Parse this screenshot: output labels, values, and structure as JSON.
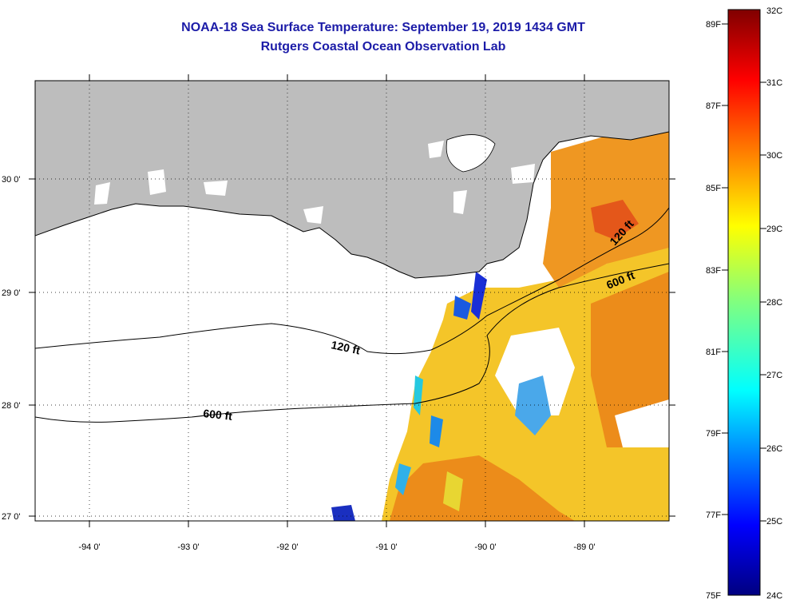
{
  "header": {
    "title": "NOAA-18 Sea Surface Temperature:  September 19, 2019 1434 GMT",
    "subtitle": "Rutgers Coastal Ocean Observation Lab"
  },
  "map": {
    "lon_labels": [
      "-94 0'",
      "-93 0'",
      "-92 0'",
      "-91 0'",
      "-90 0'",
      "-89 0'"
    ],
    "lat_labels": [
      "30 0'",
      "29 0'",
      "28 0'",
      "27 0'"
    ],
    "contour_labels": [
      "120 ft",
      "600 ft",
      "120 ft",
      "600 ft"
    ],
    "colors": {
      "land": "#bdbdbd",
      "ocean_nodata": "#ffffff"
    }
  },
  "colorbar": {
    "fahrenheit": [
      "89F",
      "87F",
      "85F",
      "83F",
      "81F",
      "79F",
      "77F",
      "75F"
    ],
    "celsius": [
      "32C",
      "31C",
      "30C",
      "29C",
      "28C",
      "27C",
      "26C",
      "25C",
      "24C"
    ]
  }
}
